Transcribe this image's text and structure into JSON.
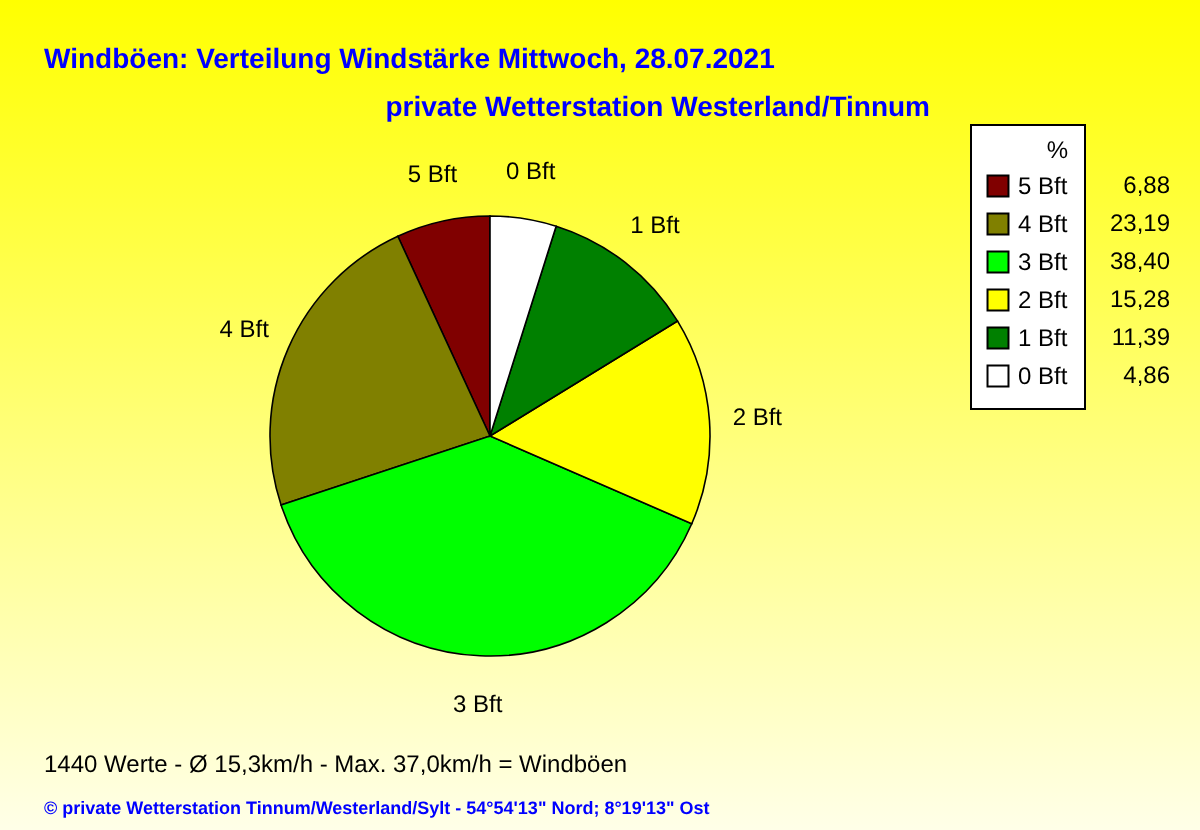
{
  "chart_data": {
    "type": "pie",
    "title": "Windböen: Verteilung Windstärke  Mittwoch, 28.07.2021",
    "subtitle": "private Wetterstation Westerland/Tinnum",
    "legend_title": "%",
    "categories": [
      "5 Bft",
      "4 Bft",
      "3 Bft",
      "2 Bft",
      "1 Bft",
      "0 Bft"
    ],
    "values": [
      6.88,
      23.19,
      38.4,
      15.28,
      11.39,
      4.86
    ],
    "value_labels": [
      "6,88",
      "23,19",
      "38,40",
      "15,28",
      "11,39",
      "4,86"
    ],
    "colors": [
      "#800000",
      "#808000",
      "#00ff00",
      "#ffff00",
      "#008000",
      "#ffffff"
    ],
    "legend": "top right",
    "annotations": [
      "1440 Werte   -   Ø 15,3km/h  -  Max. 37,0km/h = Windböen",
      "© private Wetterstation Tinnum/Westerland/Sylt  -  54°54'13\" Nord; 8°19'13\" Ost"
    ]
  }
}
